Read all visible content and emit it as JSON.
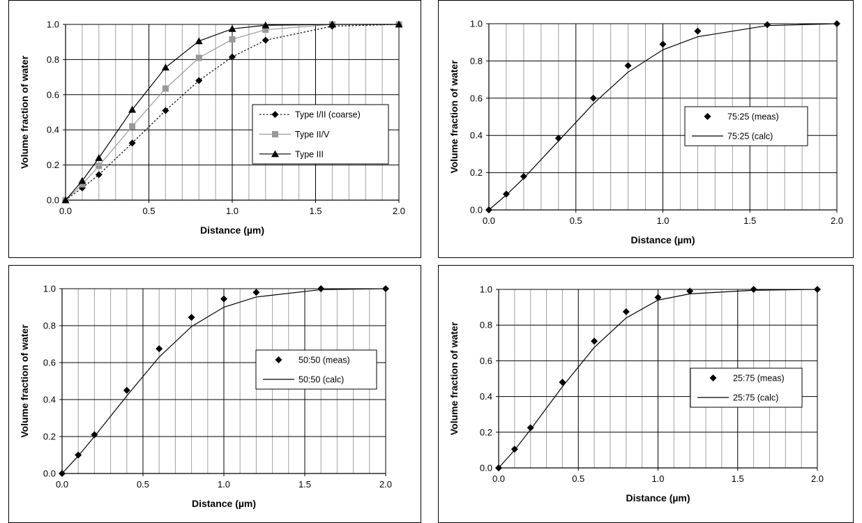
{
  "chart_data": [
    {
      "type": "line",
      "xlabel": "Distance (µm)",
      "ylabel": "Volume fraction of water",
      "xlim": [
        0,
        2
      ],
      "ylim": [
        0,
        1
      ],
      "x_ticks": [
        "0.0",
        "0.5",
        "1.0",
        "1.5",
        "2.0"
      ],
      "y_ticks": [
        "0.0",
        "0.2",
        "0.4",
        "0.6",
        "0.8",
        "1.0"
      ],
      "grid": true,
      "legend": "center-right",
      "series": [
        {
          "name": "Type I/II (coarse)",
          "marker": "diamond",
          "line": "dotted",
          "color": "#000000",
          "x": [
            0,
            0.1,
            0.2,
            0.4,
            0.6,
            0.8,
            1.0,
            1.2,
            1.6,
            2.0
          ],
          "y": [
            0,
            0.07,
            0.145,
            0.325,
            0.51,
            0.68,
            0.815,
            0.91,
            0.99,
            1.0
          ]
        },
        {
          "name": "Type II/V",
          "marker": "square",
          "line": "solid",
          "color": "#999999",
          "x": [
            0,
            0.1,
            0.2,
            0.4,
            0.6,
            0.8,
            1.0,
            1.2,
            1.6,
            2.0
          ],
          "y": [
            0,
            0.09,
            0.195,
            0.42,
            0.635,
            0.81,
            0.915,
            0.97,
            1.0,
            1.0
          ]
        },
        {
          "name": "Type III",
          "marker": "triangle",
          "line": "solid",
          "color": "#000000",
          "x": [
            0,
            0.1,
            0.2,
            0.4,
            0.6,
            0.8,
            1.0,
            1.2,
            1.6,
            2.0
          ],
          "y": [
            0,
            0.11,
            0.24,
            0.515,
            0.755,
            0.905,
            0.975,
            0.995,
            1.0,
            1.0
          ]
        }
      ]
    },
    {
      "type": "line",
      "xlabel": "Distance (µm)",
      "ylabel": "Volume fraction of water",
      "xlim": [
        0,
        2
      ],
      "ylim": [
        0,
        1
      ],
      "x_ticks": [
        "0.0",
        "0.5",
        "1.0",
        "1.5",
        "2.0"
      ],
      "y_ticks": [
        "0.0",
        "0.2",
        "0.4",
        "0.6",
        "0.8",
        "1.0"
      ],
      "grid": true,
      "legend": "center-right",
      "series": [
        {
          "name": "75:25 (meas)",
          "marker": "diamond",
          "line": "none",
          "color": "#000000",
          "x": [
            0,
            0.1,
            0.2,
            0.4,
            0.6,
            0.8,
            1.0,
            1.2,
            1.6,
            2.0
          ],
          "y": [
            0,
            0.085,
            0.18,
            0.385,
            0.6,
            0.775,
            0.89,
            0.96,
            0.995,
            1.0
          ]
        },
        {
          "name": "75:25 (calc)",
          "marker": "none",
          "line": "solid",
          "color": "#000000",
          "x": [
            0,
            0.1,
            0.2,
            0.4,
            0.6,
            0.8,
            1.0,
            1.2,
            1.6,
            2.0
          ],
          "y": [
            0,
            0.08,
            0.17,
            0.37,
            0.57,
            0.74,
            0.86,
            0.93,
            0.99,
            1.0
          ]
        }
      ]
    },
    {
      "type": "line",
      "xlabel": "Distance (µm)",
      "ylabel": "Volume fraction of water",
      "xlim": [
        0,
        2
      ],
      "ylim": [
        0,
        1
      ],
      "x_ticks": [
        "0.0",
        "0.5",
        "1.0",
        "1.5",
        "2.0"
      ],
      "y_ticks": [
        "0.0",
        "0.2",
        "0.4",
        "0.6",
        "0.8",
        "1.0"
      ],
      "grid": true,
      "legend": "center-right",
      "series": [
        {
          "name": "50:50 (meas)",
          "marker": "diamond",
          "line": "none",
          "color": "#000000",
          "x": [
            0,
            0.1,
            0.2,
            0.4,
            0.6,
            0.8,
            1.0,
            1.2,
            1.6,
            2.0
          ],
          "y": [
            0,
            0.1,
            0.21,
            0.45,
            0.675,
            0.845,
            0.945,
            0.98,
            1.0,
            1.0
          ]
        },
        {
          "name": "50:50 (calc)",
          "marker": "none",
          "line": "solid",
          "color": "#000000",
          "x": [
            0,
            0.1,
            0.2,
            0.4,
            0.6,
            0.8,
            1.0,
            1.2,
            1.6,
            2.0
          ],
          "y": [
            0,
            0.095,
            0.2,
            0.42,
            0.63,
            0.795,
            0.9,
            0.955,
            0.995,
            1.0
          ]
        }
      ]
    },
    {
      "type": "line",
      "xlabel": "Distance (µm)",
      "ylabel": "Volume fraction of water",
      "xlim": [
        0,
        2
      ],
      "ylim": [
        0,
        1
      ],
      "x_ticks": [
        "0.0",
        "0.5",
        "1.0",
        "1.5",
        "2.0"
      ],
      "y_ticks": [
        "0.0",
        "0.2",
        "0.4",
        "0.6",
        "0.8",
        "1.0"
      ],
      "grid": true,
      "legend": "center-right",
      "series": [
        {
          "name": "25:75 (meas)",
          "marker": "diamond",
          "line": "none",
          "color": "#000000",
          "x": [
            0,
            0.1,
            0.2,
            0.4,
            0.6,
            0.8,
            1.0,
            1.2,
            1.6,
            2.0
          ],
          "y": [
            0,
            0.105,
            0.225,
            0.48,
            0.71,
            0.875,
            0.955,
            0.99,
            1.0,
            1.0
          ]
        },
        {
          "name": "25:75 (calc)",
          "marker": "none",
          "line": "solid",
          "color": "#000000",
          "x": [
            0,
            0.1,
            0.2,
            0.4,
            0.6,
            0.8,
            1.0,
            1.2,
            1.6,
            2.0
          ],
          "y": [
            0,
            0.1,
            0.215,
            0.455,
            0.675,
            0.84,
            0.94,
            0.975,
            0.995,
            1.0
          ]
        }
      ]
    }
  ]
}
